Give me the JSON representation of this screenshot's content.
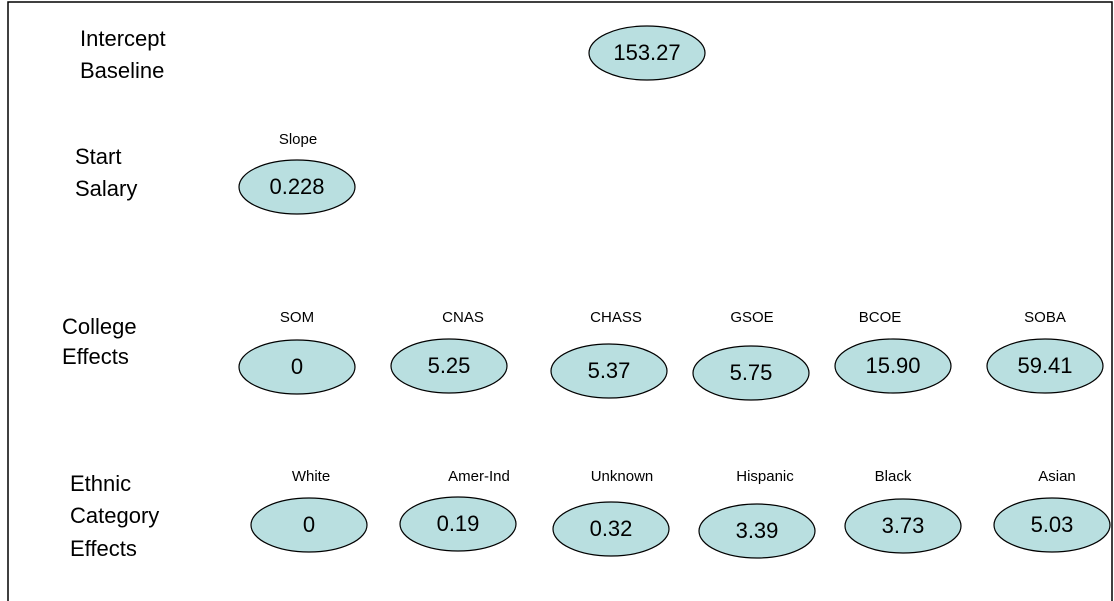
{
  "groups": [
    {
      "label_lines": [
        "Intercept",
        "Baseline"
      ],
      "items": [
        {
          "value": "153.27"
        }
      ]
    },
    {
      "label_lines": [
        "Start",
        "Salary"
      ],
      "items": [
        {
          "name": "Slope",
          "value": "0.228"
        }
      ]
    },
    {
      "label_lines": [
        "College",
        "Effects"
      ],
      "items": [
        {
          "name": "SOM",
          "value": "0"
        },
        {
          "name": "CNAS",
          "value": "5.25"
        },
        {
          "name": "CHASS",
          "value": "5.37"
        },
        {
          "name": "GSOE",
          "value": "5.75"
        },
        {
          "name": "BCOE",
          "value": "15.90"
        },
        {
          "name": "SOBA",
          "value": "59.41"
        }
      ]
    },
    {
      "label_lines": [
        "Ethnic",
        "Category",
        "Effects"
      ],
      "items": [
        {
          "name": "White",
          "value": "0"
        },
        {
          "name": "Amer-Ind",
          "value": "0.19"
        },
        {
          "name": "Unknown",
          "value": "0.32"
        },
        {
          "name": "Hispanic",
          "value": "3.39"
        },
        {
          "name": "Black",
          "value": "3.73"
        },
        {
          "name": "Asian",
          "value": "5.03"
        }
      ]
    }
  ]
}
